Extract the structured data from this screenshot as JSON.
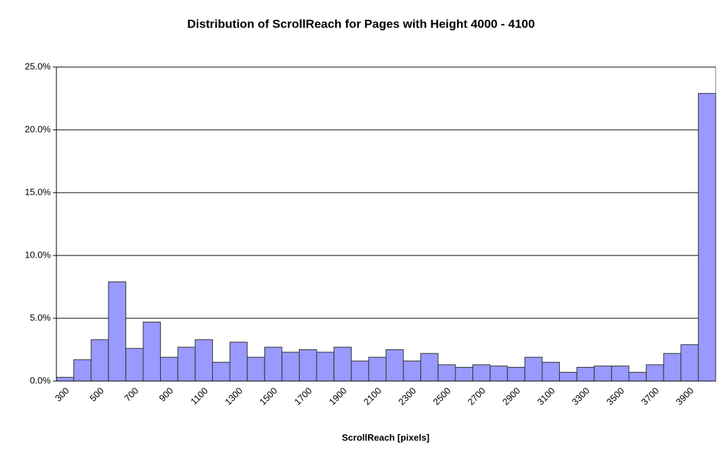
{
  "chart_data": {
    "type": "bar",
    "title": "Distribution of ScrollReach for Pages with Height 4000 - 4100",
    "x_label": "ScrollReach [pixels]",
    "categories": [
      "300",
      null,
      "500",
      null,
      "700",
      null,
      "900",
      null,
      "1100",
      null,
      "1300",
      null,
      "1500",
      null,
      "1700",
      null,
      "1900",
      null,
      "2100",
      null,
      "2300",
      null,
      "2500",
      null,
      "2700",
      null,
      "2900",
      null,
      "3100",
      null,
      "3300",
      null,
      "3500",
      null,
      "3700",
      null,
      "3900",
      null
    ],
    "values": [
      0.3,
      1.7,
      3.3,
      7.9,
      2.6,
      4.7,
      1.9,
      2.7,
      3.3,
      1.5,
      3.1,
      1.9,
      2.7,
      2.3,
      2.5,
      2.3,
      2.7,
      1.6,
      1.9,
      2.5,
      1.6,
      2.2,
      1.3,
      1.1,
      1.3,
      1.2,
      1.1,
      1.9,
      1.5,
      0.7,
      1.1,
      1.2,
      1.2,
      0.7,
      1.3,
      2.2,
      2.9,
      22.9
    ],
    "color": "#9999ff",
    "ylim": [
      0,
      25
    ],
    "yticks": [
      {
        "value": 0,
        "label": "0.0%"
      },
      {
        "value": 5,
        "label": "5.0%"
      },
      {
        "value": 10,
        "label": "10.0%"
      },
      {
        "value": 15,
        "label": "15.0%"
      },
      {
        "value": 20,
        "label": "20.0%"
      },
      {
        "value": 25,
        "label": "25.0%"
      }
    ],
    "grid": true
  }
}
